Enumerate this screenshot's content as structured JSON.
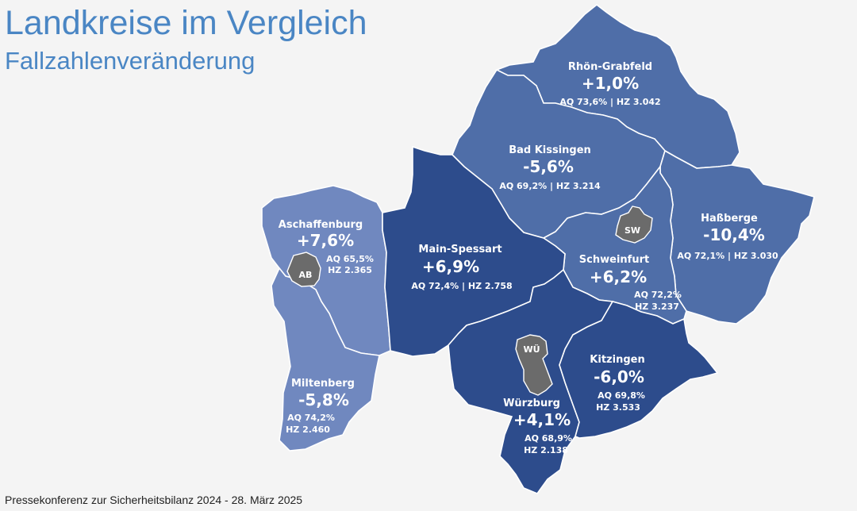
{
  "header": {
    "title": "Landkreise im Vergleich",
    "subtitle": "Fallzahlenveränderung"
  },
  "footer": {
    "text": "Pressekonferenz zur Sicherheitsbilanz 2024  -  28. März 2025"
  },
  "colors": {
    "background": "#f4f4f4",
    "title": "#4a86c4",
    "light_region": "#7088bf",
    "mid_region": "#4f6ea8",
    "dark_region": "#2d4c8c",
    "city": "#6b6b6b",
    "border": "#ffffff"
  },
  "districts": {
    "rhoen_grabfeld": {
      "name": "Rhön-Grabfeld",
      "change": "+1,0%",
      "stats": "AQ 73,6% | HZ 3.042"
    },
    "bad_kissingen": {
      "name": "Bad Kissingen",
      "change": "-5,6%",
      "stats": "AQ 69,2% | HZ 3.214"
    },
    "hassberge": {
      "name": "Haßberge",
      "change": "-10,4%",
      "stats": "AQ 72,1% | HZ 3.030"
    },
    "schweinfurt": {
      "name": "Schweinfurt",
      "change": "+6,2%",
      "aq": "AQ 72,2%",
      "hz": "HZ 3.237",
      "city": "SW"
    },
    "aschaffenburg": {
      "name": "Aschaffenburg",
      "change": "+7,6%",
      "aq": "AQ 65,5%",
      "hz": "HZ 2.365",
      "city": "AB"
    },
    "main_spessart": {
      "name": "Main-Spessart",
      "change": "+6,9%",
      "stats": "AQ 72,4% | HZ 2.758"
    },
    "miltenberg": {
      "name": "Miltenberg",
      "change": "-5,8%",
      "aq": "AQ 74,2%",
      "hz": "HZ 2.460"
    },
    "wuerzburg": {
      "name": "Würzburg",
      "change": "+4,1%",
      "aq": "AQ 68,9%",
      "hz": "HZ 2.138",
      "city": "WÜ"
    },
    "kitzingen": {
      "name": "Kitzingen",
      "change": "-6,0%",
      "aq": "AQ 69,8%",
      "hz": "HZ 3.533"
    }
  }
}
